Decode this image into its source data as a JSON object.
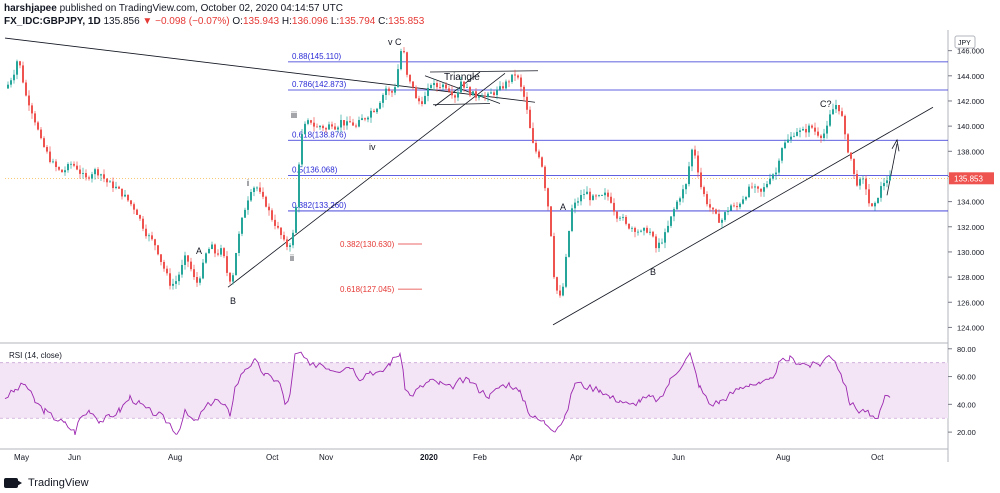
{
  "header": {
    "publisher": "harshjapee",
    "published_text": "published on TradingView.com, October 02, 2020 04:14:57 UTC",
    "symbol": "FX_IDC:GBPJPY, 1D",
    "last": "135.856",
    "change": "−0.098 (−0.07%)",
    "o_label": "O:",
    "o_value": "135.943",
    "h_label": "H:",
    "h_value": "136.096",
    "l_label": "L:",
    "l_value": "135.794",
    "c_label": "C:",
    "c_value": "135.853"
  },
  "price_axis": {
    "currency_badge": "JPY",
    "last_price_label": "135.853",
    "ticks": [
      "124.000",
      "126.000",
      "128.000",
      "130.000",
      "132.000",
      "134.000",
      "136.000",
      "138.000",
      "140.000",
      "142.000",
      "144.000",
      "146.000"
    ]
  },
  "rsi": {
    "label": "RSI (14, close)",
    "ticks": [
      "20.00",
      "40.00",
      "60.00",
      "80.00"
    ],
    "upper_band": 70,
    "lower_band": 30
  },
  "time_axis": {
    "labels": [
      "May",
      "Jun",
      "Aug",
      "Oct",
      "Nov",
      "2020",
      "Feb",
      "Apr",
      "Jun",
      "Aug",
      "Oct"
    ]
  },
  "annotations": {
    "fib_levels": [
      {
        "label": "0.88(145.110)",
        "value": 145.11
      },
      {
        "label": "0.786(142.873)",
        "value": 142.873
      },
      {
        "label": "0.618(138.876)",
        "value": 138.876
      },
      {
        "label": "0.5(136.068)",
        "value": 136.068
      },
      {
        "label": "0.382(133.260)",
        "value": 133.26
      }
    ],
    "target_levels": [
      {
        "label": "0.382(130.630)",
        "value": 130.63
      },
      {
        "label": "0.618(127.045)",
        "value": 127.045
      }
    ],
    "wave_labels": [
      "v C",
      "Triangle",
      "iii",
      "iv",
      "i",
      "ii",
      "A",
      "B",
      "A",
      "B",
      "C?"
    ]
  },
  "colors": {
    "up_candle": "#26a69a",
    "down_candle": "#ef5350",
    "fib_line": "#2b2bd6",
    "target_red": "#e53935",
    "rsi_line": "#9c27b0",
    "rsi_band": "#f3e5f5",
    "last_price_bg": "#ef5350"
  },
  "footer": {
    "brand": "TradingView"
  },
  "chart_data": {
    "type": "candlestick",
    "ylim": [
      123,
      147.8
    ],
    "rsi_ylim": [
      10,
      82
    ],
    "x": [
      "May",
      "Jun",
      "Aug",
      "Oct",
      "Nov",
      "2020",
      "Feb",
      "Apr",
      "Jun",
      "Aug",
      "Oct"
    ],
    "price_path": [
      [
        0,
        143
      ],
      [
        4,
        143.6
      ],
      [
        8,
        144.3
      ],
      [
        12,
        145.5
      ],
      [
        16,
        144
      ],
      [
        20,
        142.4
      ],
      [
        24,
        141.7
      ],
      [
        30,
        140.2
      ],
      [
        35,
        138.8
      ],
      [
        40,
        138
      ],
      [
        45,
        137.2
      ],
      [
        50,
        136.7
      ],
      [
        55,
        136.3
      ],
      [
        60,
        136.6
      ],
      [
        65,
        137
      ],
      [
        70,
        136.8
      ],
      [
        75,
        136.2
      ],
      [
        80,
        135.8
      ],
      [
        88,
        136.5
      ],
      [
        95,
        136.2
      ],
      [
        100,
        135.6
      ],
      [
        110,
        135.1
      ],
      [
        120,
        134.3
      ],
      [
        130,
        133.3
      ],
      [
        140,
        131.5
      ],
      [
        150,
        130.5
      ],
      [
        155,
        129.3
      ],
      [
        160,
        128.3
      ],
      [
        165,
        127.3
      ],
      [
        170,
        127.7
      ],
      [
        175,
        128.6
      ],
      [
        180,
        129.7
      ],
      [
        185,
        128.6
      ],
      [
        190,
        127.4
      ],
      [
        195,
        128.3
      ],
      [
        200,
        129.8
      ],
      [
        205,
        130.5
      ],
      [
        210,
        129.8
      ],
      [
        215,
        130.1
      ],
      [
        218,
        129.5
      ],
      [
        222,
        128
      ],
      [
        226,
        127.7
      ],
      [
        230,
        130
      ],
      [
        235,
        132.2
      ],
      [
        240,
        133.8
      ],
      [
        245,
        135
      ],
      [
        250,
        135.3
      ],
      [
        255,
        134.4
      ],
      [
        260,
        133.8
      ],
      [
        265,
        132.8
      ],
      [
        270,
        132.1
      ],
      [
        275,
        131.3
      ],
      [
        280,
        130.4
      ],
      [
        285,
        130.8
      ],
      [
        288,
        131.7
      ],
      [
        291,
        134.4
      ],
      [
        294,
        138.5
      ],
      [
        297,
        139.6
      ],
      [
        300,
        140.2
      ],
      [
        305,
        140.4
      ],
      [
        310,
        139.8
      ],
      [
        315,
        140.1
      ],
      [
        320,
        139.7
      ],
      [
        325,
        140.3
      ],
      [
        330,
        139.9
      ],
      [
        335,
        140.4
      ],
      [
        340,
        140.1
      ],
      [
        345,
        140.3
      ],
      [
        350,
        139.9
      ],
      [
        355,
        140.5
      ],
      [
        360,
        140.7
      ],
      [
        365,
        141.2
      ],
      [
        370,
        141.4
      ],
      [
        375,
        142.2
      ],
      [
        380,
        143
      ],
      [
        385,
        142.5
      ],
      [
        390,
        143.4
      ],
      [
        394,
        145.7
      ],
      [
        397,
        146.5
      ],
      [
        400,
        144.2
      ],
      [
        403,
        143.5
      ],
      [
        407,
        143.2
      ],
      [
        410,
        142.1
      ],
      [
        415,
        141.9
      ],
      [
        420,
        142.4
      ],
      [
        425,
        143.4
      ],
      [
        430,
        143.1
      ],
      [
        435,
        143.3
      ],
      [
        440,
        143.2
      ],
      [
        445,
        142.8
      ],
      [
        450,
        142.3
      ],
      [
        455,
        143.6
      ],
      [
        460,
        143
      ],
      [
        465,
        142.6
      ],
      [
        470,
        142.4
      ],
      [
        475,
        142.7
      ],
      [
        480,
        142.2
      ],
      [
        485,
        142.6
      ],
      [
        490,
        142.7
      ],
      [
        495,
        143
      ],
      [
        500,
        143.4
      ],
      [
        505,
        143.8
      ],
      [
        510,
        144.2
      ],
      [
        513,
        143.5
      ],
      [
        518,
        142.3
      ],
      [
        522,
        140.8
      ],
      [
        526,
        138.7
      ],
      [
        530,
        138
      ],
      [
        535,
        137.5
      ],
      [
        538,
        135.7
      ],
      [
        541,
        134.3
      ],
      [
        544,
        132.5
      ],
      [
        548,
        128.2
      ],
      [
        552,
        126.5
      ],
      [
        555,
        126.3
      ],
      [
        558,
        127.7
      ],
      [
        562,
        131.1
      ],
      [
        566,
        133.4
      ],
      [
        570,
        133.9
      ],
      [
        575,
        134.4
      ],
      [
        580,
        134.8
      ],
      [
        585,
        134.2
      ],
      [
        590,
        134.3
      ],
      [
        595,
        134.3
      ],
      [
        600,
        134.6
      ],
      [
        605,
        134.1
      ],
      [
        610,
        132.9
      ],
      [
        615,
        132.9
      ],
      [
        620,
        132.1
      ],
      [
        625,
        132
      ],
      [
        630,
        131.8
      ],
      [
        635,
        131.5
      ],
      [
        640,
        131.8
      ],
      [
        645,
        131.5
      ],
      [
        650,
        130.3
      ],
      [
        655,
        130.8
      ],
      [
        660,
        131.5
      ],
      [
        665,
        132.7
      ],
      [
        670,
        133.8
      ],
      [
        675,
        134.6
      ],
      [
        680,
        135.3
      ],
      [
        684,
        137.3
      ],
      [
        687,
        138.5
      ],
      [
        690,
        137.4
      ],
      [
        695,
        135.2
      ],
      [
        700,
        134.1
      ],
      [
        705,
        133.4
      ],
      [
        710,
        132.8
      ],
      [
        715,
        132.4
      ],
      [
        720,
        133.2
      ],
      [
        725,
        133.7
      ],
      [
        730,
        133.4
      ],
      [
        735,
        134.1
      ],
      [
        740,
        134.6
      ],
      [
        745,
        135.2
      ],
      [
        750,
        134.9
      ],
      [
        755,
        134.7
      ],
      [
        760,
        135.3
      ],
      [
        765,
        136.2
      ],
      [
        770,
        136.3
      ],
      [
        775,
        138.3
      ],
      [
        780,
        138.7
      ],
      [
        785,
        139.1
      ],
      [
        790,
        139.7
      ],
      [
        795,
        139.5
      ],
      [
        800,
        139.7
      ],
      [
        805,
        140
      ],
      [
        810,
        139.5
      ],
      [
        815,
        139.3
      ],
      [
        820,
        139.5
      ],
      [
        825,
        141.1
      ],
      [
        830,
        141.7
      ],
      [
        835,
        141.2
      ],
      [
        840,
        138.6
      ],
      [
        845,
        137.4
      ],
      [
        848,
        136.1
      ],
      [
        852,
        135.3
      ],
      [
        856,
        135.8
      ],
      [
        860,
        135.1
      ],
      [
        864,
        133.5
      ],
      [
        868,
        133.4
      ],
      [
        872,
        134.5
      ],
      [
        876,
        135.3
      ],
      [
        880,
        135.8
      ],
      [
        885,
        135.85
      ]
    ],
    "rsi_path": [
      [
        0,
        45
      ],
      [
        10,
        50
      ],
      [
        20,
        55
      ],
      [
        30,
        42
      ],
      [
        40,
        35
      ],
      [
        50,
        30
      ],
      [
        60,
        26
      ],
      [
        70,
        20
      ],
      [
        75,
        30
      ],
      [
        85,
        36
      ],
      [
        95,
        28
      ],
      [
        105,
        31
      ],
      [
        115,
        36
      ],
      [
        125,
        45
      ],
      [
        135,
        40
      ],
      [
        145,
        35
      ],
      [
        155,
        32
      ],
      [
        165,
        26
      ],
      [
        172,
        19
      ],
      [
        180,
        34
      ],
      [
        190,
        27
      ],
      [
        200,
        37
      ],
      [
        210,
        44
      ],
      [
        220,
        38
      ],
      [
        225,
        33
      ],
      [
        230,
        52
      ],
      [
        240,
        66
      ],
      [
        250,
        71
      ],
      [
        260,
        61
      ],
      [
        270,
        58
      ],
      [
        275,
        55
      ],
      [
        280,
        40
      ],
      [
        285,
        46
      ],
      [
        290,
        75
      ],
      [
        296,
        77
      ],
      [
        305,
        67
      ],
      [
        315,
        70
      ],
      [
        325,
        66
      ],
      [
        335,
        65
      ],
      [
        345,
        68
      ],
      [
        355,
        59
      ],
      [
        365,
        64
      ],
      [
        375,
        62
      ],
      [
        385,
        70
      ],
      [
        395,
        77
      ],
      [
        400,
        53
      ],
      [
        405,
        46
      ],
      [
        415,
        52
      ],
      [
        425,
        57
      ],
      [
        435,
        55
      ],
      [
        445,
        52
      ],
      [
        455,
        57
      ],
      [
        465,
        57
      ],
      [
        475,
        50
      ],
      [
        485,
        46
      ],
      [
        495,
        53
      ],
      [
        505,
        55
      ],
      [
        515,
        48
      ],
      [
        520,
        42
      ],
      [
        525,
        33
      ],
      [
        530,
        30
      ],
      [
        540,
        27
      ],
      [
        550,
        22
      ],
      [
        560,
        30
      ],
      [
        570,
        56
      ],
      [
        585,
        52
      ],
      [
        595,
        51
      ],
      [
        605,
        45
      ],
      [
        615,
        43
      ],
      [
        625,
        39
      ],
      [
        635,
        43
      ],
      [
        645,
        45
      ],
      [
        655,
        43
      ],
      [
        665,
        57
      ],
      [
        675,
        67
      ],
      [
        685,
        76
      ],
      [
        695,
        52
      ],
      [
        705,
        40
      ],
      [
        715,
        42
      ],
      [
        725,
        47
      ],
      [
        735,
        52
      ],
      [
        745,
        55
      ],
      [
        755,
        54
      ],
      [
        765,
        57
      ],
      [
        775,
        70
      ],
      [
        785,
        73
      ],
      [
        795,
        70
      ],
      [
        805,
        68
      ],
      [
        815,
        69
      ],
      [
        825,
        76
      ],
      [
        830,
        72
      ],
      [
        838,
        58
      ],
      [
        845,
        41
      ],
      [
        855,
        35
      ],
      [
        860,
        36
      ],
      [
        865,
        32
      ],
      [
        870,
        28
      ],
      [
        875,
        35
      ],
      [
        880,
        44
      ],
      [
        885,
        45
      ]
    ]
  }
}
